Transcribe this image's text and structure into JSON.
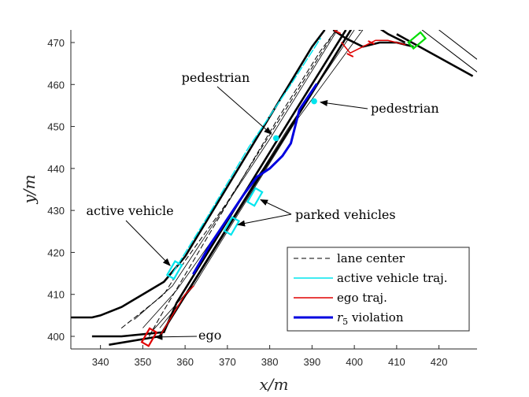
{
  "chart_data": {
    "type": "line",
    "title": "",
    "xlabel": "x/m",
    "ylabel": "y/m",
    "xlim": [
      333,
      429
    ],
    "ylim": [
      397,
      473
    ],
    "xticks": [
      340,
      350,
      360,
      370,
      380,
      390,
      400,
      410,
      420
    ],
    "yticks": [
      400,
      410,
      420,
      430,
      440,
      450,
      460,
      470
    ],
    "grid": false,
    "legend_position": "bottom-right",
    "colors": {
      "lane_center": "#000000",
      "active": "#00e5ee",
      "ego": "#e00000",
      "violation": "#0000e0",
      "road": "#000000",
      "green_vehicle": "#00dd00"
    },
    "series": [
      {
        "name": "lane center",
        "style": "dashed",
        "color": "#000000",
        "points": [
          [
            351.5,
            400
          ],
          [
            354,
            404.5
          ],
          [
            382,
            452
          ],
          [
            392,
            468
          ],
          [
            398,
            476
          ]
        ]
      },
      {
        "name": "lane center",
        "style": "dashed",
        "color": "#000000",
        "points": [
          [
            345,
            402
          ],
          [
            355,
            410
          ],
          [
            360,
            418
          ],
          [
            370,
            432
          ],
          [
            385,
            456
          ],
          [
            395,
            472
          ],
          [
            398,
            476
          ]
        ]
      },
      {
        "name": "active vehicle traj.",
        "style": "solid",
        "color": "#00e5ee",
        "points": [
          [
            357,
            415
          ],
          [
            365,
            428
          ],
          [
            375,
            445
          ],
          [
            385,
            460
          ],
          [
            392,
            471
          ]
        ]
      },
      {
        "name": "ego traj.",
        "style": "solid",
        "color": "#e00000",
        "points": [
          [
            354,
            400
          ],
          [
            360,
            410
          ],
          [
            362,
            412
          ]
        ]
      },
      {
        "name": "r5 violation",
        "style": "solid_thick",
        "color": "#0000e0",
        "points": [
          [
            362,
            415
          ],
          [
            366,
            422
          ],
          [
            370,
            428
          ],
          [
            374,
            434
          ],
          [
            377,
            438
          ],
          [
            380,
            440
          ],
          [
            383,
            443
          ],
          [
            385,
            446
          ],
          [
            386,
            450
          ],
          [
            387,
            454
          ],
          [
            389,
            457
          ],
          [
            391,
            460
          ]
        ]
      },
      {
        "name": "ego traj.",
        "style": "solid",
        "color": "#e00000",
        "points": [
          [
            397,
            470
          ],
          [
            399,
            467.5
          ],
          [
            402,
            469
          ],
          [
            405,
            470.5
          ],
          [
            408,
            470.5
          ],
          [
            412,
            469.5
          ]
        ]
      }
    ],
    "road_edges": [
      [
        [
          338,
          400
        ],
        [
          345,
          400
        ],
        [
          355,
          401
        ],
        [
          358,
          408
        ],
        [
          385,
          452
        ],
        [
          398,
          473
        ]
      ],
      [
        [
          333,
          404.5
        ],
        [
          338,
          404.5
        ],
        [
          340,
          405
        ],
        [
          345,
          407
        ],
        [
          350,
          410
        ],
        [
          355,
          413
        ],
        [
          360,
          419
        ],
        [
          390,
          469
        ],
        [
          393,
          473
        ]
      ],
      [
        [
          342,
          398
        ],
        [
          354,
          400
        ],
        [
          390,
          458
        ],
        [
          401,
          476
        ]
      ],
      [
        [
          401,
          473
        ],
        [
          405,
          474
        ],
        [
          408,
          472
        ],
        [
          412,
          470
        ]
      ],
      [
        [
          395,
          473
        ],
        [
          398,
          471
        ],
        [
          402,
          469
        ],
        [
          406,
          470
        ],
        [
          410,
          470
        ],
        [
          414,
          469
        ]
      ]
    ],
    "thin_lane_lines": [
      [
        [
          348,
          404
        ],
        [
          357,
          412
        ],
        [
          380,
          447
        ],
        [
          396,
          473
        ]
      ],
      [
        [
          350,
          402
        ],
        [
          358,
          411
        ],
        [
          382,
          445
        ],
        [
          399,
          473
        ]
      ],
      [
        [
          352,
          401
        ],
        [
          360,
          410
        ],
        [
          384,
          449
        ],
        [
          400,
          473
        ]
      ],
      [
        [
          354,
          402
        ],
        [
          362,
          412
        ],
        [
          386,
          451
        ],
        [
          402,
          473
        ]
      ]
    ],
    "markers": [
      {
        "label": "pedestrian",
        "x": 381.5,
        "y": 447.2,
        "color": "#00e5ee"
      },
      {
        "label": "pedestrian",
        "x": 390.5,
        "y": 456.0,
        "color": "#00e5ee"
      }
    ],
    "vehicles": [
      {
        "role": "active vehicle",
        "x": 357.5,
        "y": 415.8,
        "color": "#00e5ee"
      },
      {
        "role": "parked vehicle",
        "x": 371.0,
        "y": 426.3,
        "color": "#00e5ee"
      },
      {
        "role": "parked vehicle",
        "x": 376.5,
        "y": 433.2,
        "color": "#00e5ee"
      },
      {
        "role": "ego",
        "x": 351.5,
        "y": 399.8,
        "color": "#e00000"
      },
      {
        "role": "green vehicle",
        "x": 414.8,
        "y": 470.5,
        "color": "#00dd00"
      }
    ],
    "annotations": [
      {
        "text": "pedestrian",
        "arrow_to": [
          381.5,
          447.2
        ]
      },
      {
        "text": "pedestrian",
        "arrow_to": [
          390.5,
          456.0
        ]
      },
      {
        "text": "active vehicle",
        "arrow_to": [
          357.5,
          415.8
        ]
      },
      {
        "text": "parked vehicles",
        "arrow_to": [
          [
            371.0,
            426.3
          ],
          [
            376.5,
            433.2
          ]
        ]
      },
      {
        "text": "ego",
        "arrow_to": [
          351.5,
          399.8
        ]
      }
    ],
    "legend": [
      {
        "label": "lane center",
        "style": "dashed",
        "color": "#000000"
      },
      {
        "label": "active vehicle traj.",
        "style": "solid",
        "color": "#00e5ee"
      },
      {
        "label": "ego traj.",
        "style": "solid",
        "color": "#e00000"
      },
      {
        "label": "violation",
        "prefix_symbol": "r",
        "prefix_subscript": "5",
        "style": "solid_thick",
        "color": "#0000e0"
      }
    ]
  }
}
